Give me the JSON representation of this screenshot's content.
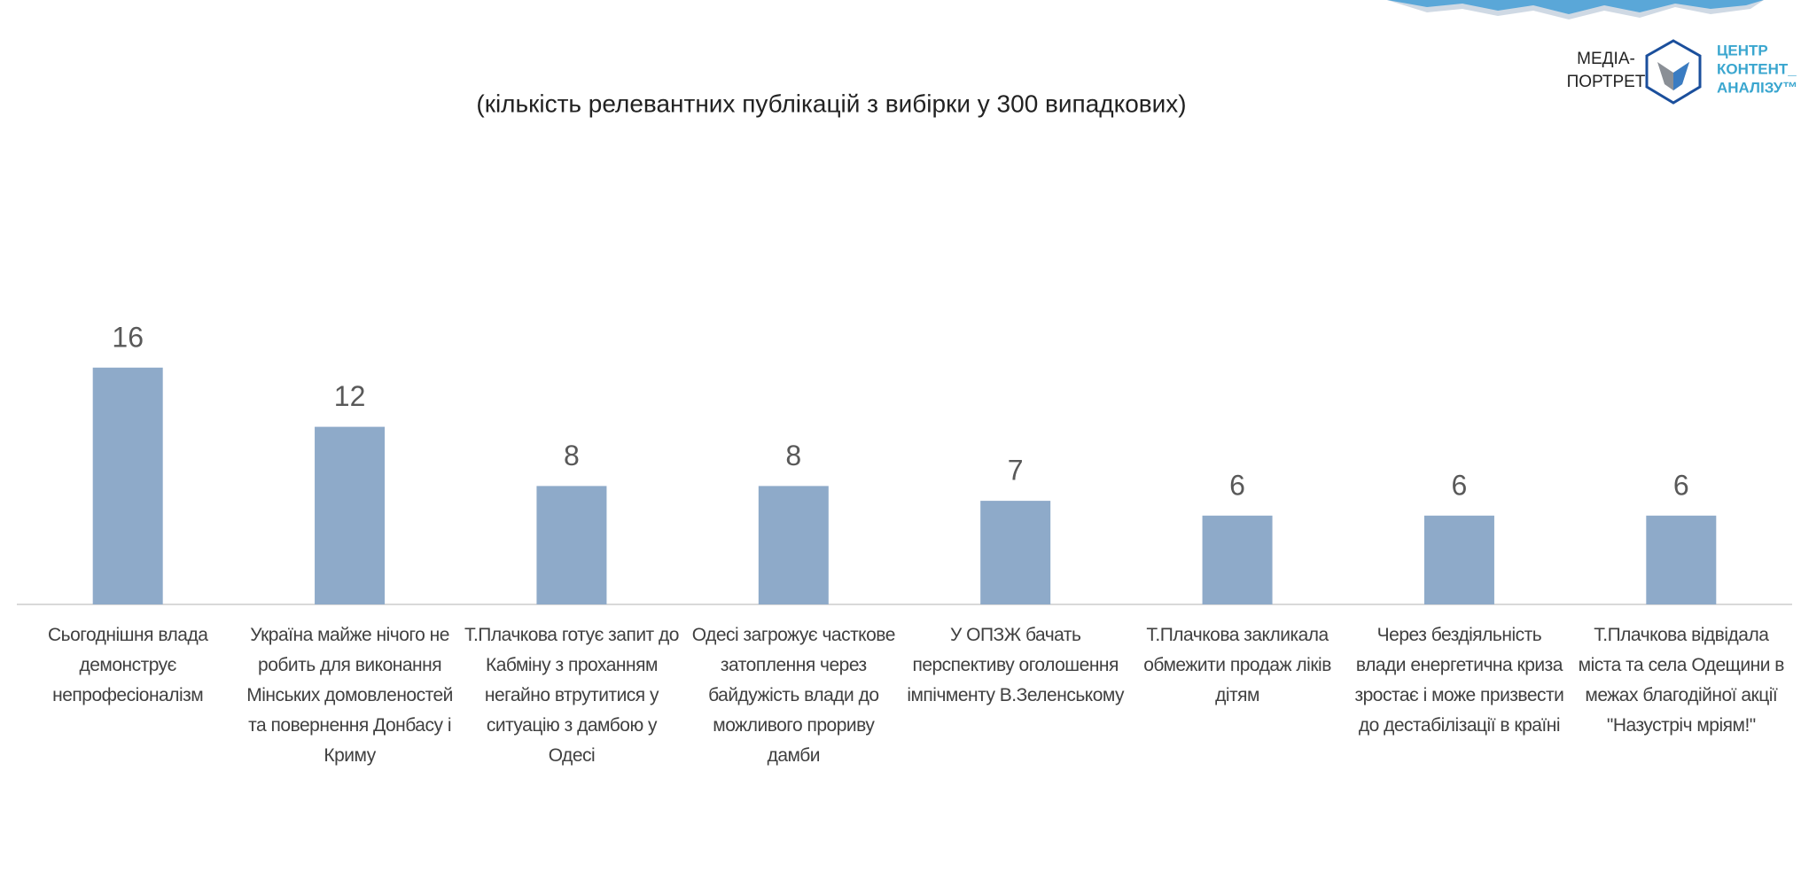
{
  "chart_data": {
    "type": "bar",
    "subtitle": "(кількість релевантних публікацій з вибірки у 300 випадкових)",
    "categories": [
      "Сьогоднішня влада демонструє непрофесіоналізм",
      "Україна майже нічого не робить для виконання Мінських домовленостей та повернення Донбасу і Криму",
      "Т.Плачкова готує запит до Кабміну з проханням негайно втрутитися у ситуацію з дамбою у Одесі",
      "Одесі загрожує часткове затоплення через байдужість влади до можливого прориву дамби",
      "У ОПЗЖ бачать перспективу оголошення імпічменту В.Зеленському",
      "Т.Плачкова закликала обмежити продаж ліків дітям",
      "Через бездіяльність влади енергетична криза зростає і може призвести до дестабілізації в країні",
      "Т.Плачкова відвідала міста та села Одещини в межах благодійної акції \"Назустріч мріям!\""
    ],
    "values": [
      16,
      12,
      8,
      8,
      7,
      6,
      6,
      6
    ],
    "color": "#8eaac9"
  },
  "logo": {
    "left": [
      "МЕДІА-",
      "ПОРТРЕТ"
    ],
    "right": [
      "ЦЕНТР",
      "КОНТЕНТ_",
      "АНАЛІЗУ™"
    ]
  }
}
